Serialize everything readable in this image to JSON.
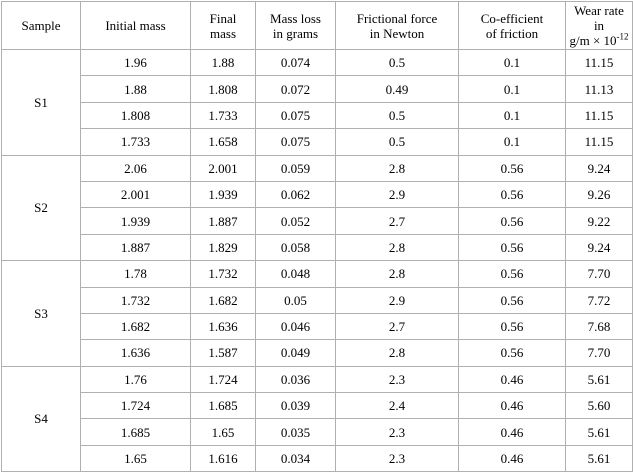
{
  "table": {
    "header": [
      [
        "Sample"
      ],
      [
        "Initial mass"
      ],
      [
        "Final",
        "mass"
      ],
      [
        "Mass loss",
        "in grams"
      ],
      [
        "Frictional force",
        "in Newton"
      ],
      [
        "Co-efficient",
        "of friction"
      ],
      [
        "Wear rate in",
        "g/m × 10",
        "-12"
      ]
    ],
    "groups": [
      {
        "sample": "S1",
        "rows": [
          [
            "1.96",
            "1.88",
            "0.074",
            "0.5",
            "0.1",
            "11.15"
          ],
          [
            "1.88",
            "1.808",
            "0.072",
            "0.49",
            "0.1",
            "11.13"
          ],
          [
            "1.808",
            "1.733",
            "0.075",
            "0.5",
            "0.1",
            "11.15"
          ],
          [
            "1.733",
            "1.658",
            "0.075",
            "0.5",
            "0.1",
            "11.15"
          ]
        ]
      },
      {
        "sample": "S2",
        "rows": [
          [
            "2.06",
            "2.001",
            "0.059",
            "2.8",
            "0.56",
            "9.24"
          ],
          [
            "2.001",
            "1.939",
            "0.062",
            "2.9",
            "0.56",
            "9.26"
          ],
          [
            "1.939",
            "1.887",
            "0.052",
            "2.7",
            "0.56",
            "9.22"
          ],
          [
            "1.887",
            "1.829",
            "0.058",
            "2.8",
            "0.56",
            "9.24"
          ]
        ]
      },
      {
        "sample": "S3",
        "rows": [
          [
            "1.78",
            "1.732",
            "0.048",
            "2.8",
            "0.56",
            "7.70"
          ],
          [
            "1.732",
            "1.682",
            "0.05",
            "2.9",
            "0.56",
            "7.72"
          ],
          [
            "1.682",
            "1.636",
            "0.046",
            "2.7",
            "0.56",
            "7.68"
          ],
          [
            "1.636",
            "1.587",
            "0.049",
            "2.8",
            "0.56",
            "7.70"
          ]
        ]
      },
      {
        "sample": "S4",
        "rows": [
          [
            "1.76",
            "1.724",
            "0.036",
            "2.3",
            "0.46",
            "5.61"
          ],
          [
            "1.724",
            "1.685",
            "0.039",
            "2.4",
            "0.46",
            "5.60"
          ],
          [
            "1.685",
            "1.65",
            "0.035",
            "2.3",
            "0.46",
            "5.61"
          ],
          [
            "1.65",
            "1.616",
            "0.034",
            "2.3",
            "0.46",
            "5.61"
          ]
        ]
      }
    ]
  }
}
